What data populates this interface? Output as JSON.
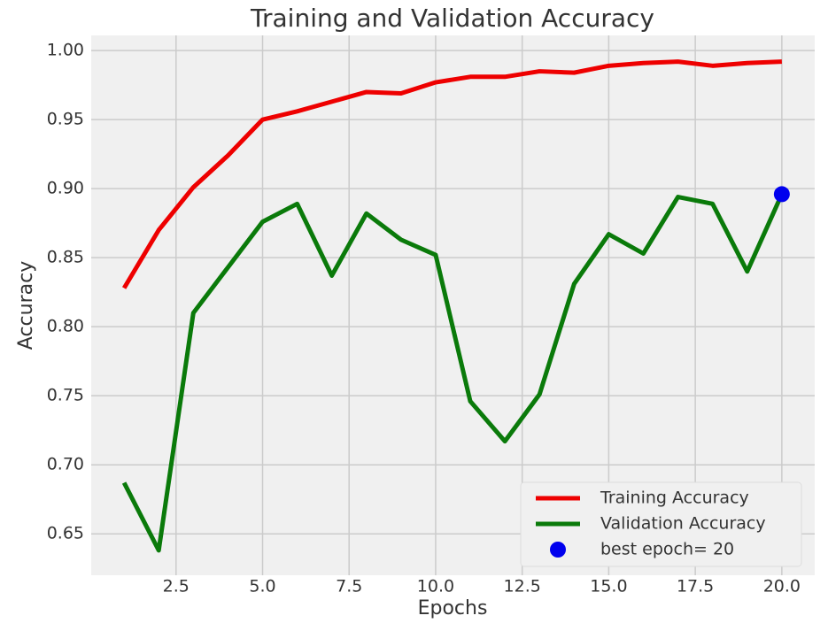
{
  "chart_data": {
    "type": "line",
    "title": "Training and Validation Accuracy",
    "x_label": "Epochs",
    "y_label": "Accuracy",
    "series": [
      {
        "name": "Training Accuracy",
        "color": "#ee0000",
        "type": "line",
        "x": [
          1,
          2,
          3,
          4,
          5,
          6,
          7,
          8,
          9,
          10,
          11,
          12,
          13,
          14,
          15,
          16,
          17,
          18,
          19,
          20
        ],
        "values": [
          0.828,
          0.87,
          0.901,
          0.924,
          0.95,
          0.956,
          0.963,
          0.97,
          0.969,
          0.977,
          0.981,
          0.981,
          0.985,
          0.984,
          0.989,
          0.991,
          0.992,
          0.989,
          0.991,
          0.992
        ]
      },
      {
        "name": "Validation Accuracy",
        "color": "#0a7a0a",
        "type": "line",
        "x": [
          1,
          2,
          3,
          4,
          5,
          6,
          7,
          8,
          9,
          10,
          11,
          12,
          13,
          14,
          15,
          16,
          17,
          18,
          19,
          20
        ],
        "values": [
          0.687,
          0.638,
          0.81,
          0.843,
          0.876,
          0.889,
          0.837,
          0.882,
          0.863,
          0.852,
          0.746,
          0.717,
          0.751,
          0.831,
          0.867,
          0.853,
          0.894,
          0.889,
          0.84,
          0.896
        ]
      },
      {
        "name": "best epoch= 20",
        "color": "#0000ee",
        "type": "scatter",
        "x": [
          20
        ],
        "values": [
          0.896
        ]
      }
    ],
    "xlim": [
      0.05,
      20.95
    ],
    "ylim": [
      0.62,
      1.011
    ],
    "xticks": [
      {
        "value": 2.5,
        "label": "2.5"
      },
      {
        "value": 5,
        "label": "5.0"
      },
      {
        "value": 7.5,
        "label": "7.5"
      },
      {
        "value": 10,
        "label": "10.0"
      },
      {
        "value": 12.5,
        "label": "12.5"
      },
      {
        "value": 15,
        "label": "15.0"
      },
      {
        "value": 17.5,
        "label": "17.5"
      },
      {
        "value": 20,
        "label": "20.0"
      }
    ],
    "yticks": [
      {
        "value": 0.65,
        "label": "0.65"
      },
      {
        "value": 0.7,
        "label": "0.70"
      },
      {
        "value": 0.75,
        "label": "0.75"
      },
      {
        "value": 0.8,
        "label": "0.80"
      },
      {
        "value": 0.85,
        "label": "0.85"
      },
      {
        "value": 0.9,
        "label": "0.90"
      },
      {
        "value": 0.95,
        "label": "0.95"
      },
      {
        "value": 1.0,
        "label": "1.00"
      }
    ],
    "grid": true,
    "legend": "lower right"
  }
}
